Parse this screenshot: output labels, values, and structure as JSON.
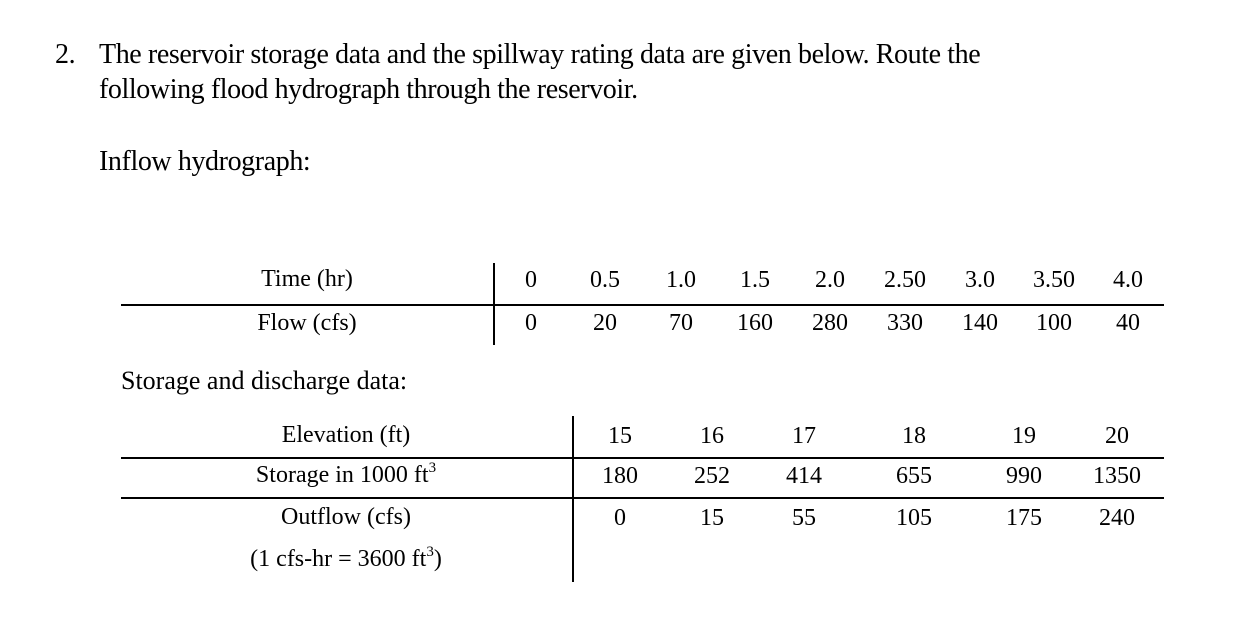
{
  "problem": {
    "number": "2.",
    "line1": "The reservoir storage data and the spillway rating data are given below. Route the",
    "line2": "following flood hydrograph through the reservoir."
  },
  "inflow": {
    "heading": "Inflow hydrograph:",
    "time_label": "Time (hr)",
    "flow_label": "Flow (cfs)",
    "time": [
      "0",
      "0.5",
      "1.0",
      "1.5",
      "2.0",
      "2.50",
      "3.0",
      "3.50",
      "4.0"
    ],
    "flow": [
      "0",
      "20",
      "70",
      "160",
      "280",
      "330",
      "140",
      "100",
      "40"
    ]
  },
  "storage": {
    "heading": "Storage and discharge data:",
    "elevation_label": "Elevation (ft)",
    "storage_label_text": "Storage in 1000 ft",
    "storage_label_sup": "3",
    "outflow_label": "Outflow (cfs)",
    "note_text": "(1 cfs-hr = 3600 ft",
    "note_sup": "3",
    "note_close": ")",
    "elevation": [
      "15",
      "16",
      "17",
      "18",
      "19",
      "20"
    ],
    "storage": [
      "180",
      "252",
      "414",
      "655",
      "990",
      "1350"
    ],
    "outflow": [
      "0",
      "15",
      "55",
      "105",
      "175",
      "240"
    ]
  }
}
